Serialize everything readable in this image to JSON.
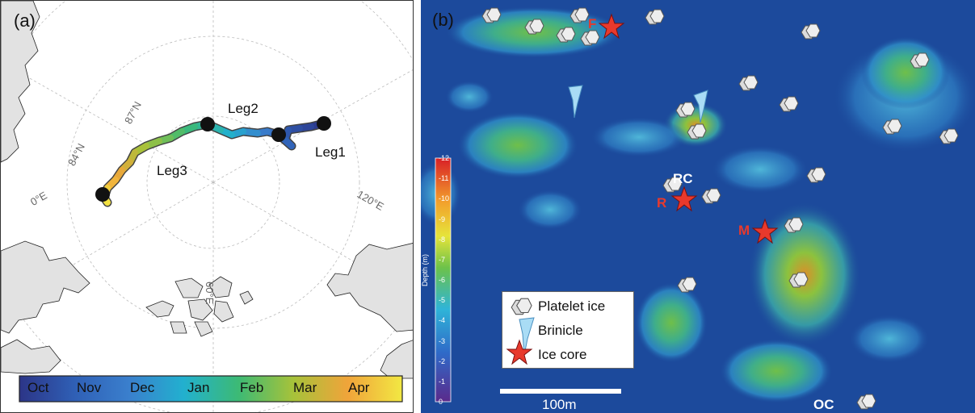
{
  "panel_a": {
    "tag": "(a)",
    "legs": [
      "Leg1",
      "Leg2",
      "Leg3"
    ],
    "lat_labels": [
      "87°N",
      "84°N"
    ],
    "lon_labels": [
      "0°E",
      "120°E",
      "60°E"
    ],
    "colorbar_months": [
      "Oct",
      "Nov",
      "Dec",
      "Jan",
      "Feb",
      "Mar",
      "Apr"
    ],
    "month_colors": [
      "#2c3587",
      "#2f5fb5",
      "#3a7fcd",
      "#22b0cf",
      "#3cba75",
      "#a6c23a",
      "#f0a43a",
      "#f2e843"
    ]
  },
  "panel_b": {
    "tag": "(b)",
    "sites": {
      "F": "F",
      "RC": "RC",
      "R": "R",
      "M": "M",
      "OC": "OC"
    },
    "depth_axis": {
      "label": "Depth (m)",
      "ticks": [
        "-12",
        "-11",
        "-10",
        "-9",
        "-8",
        "-7",
        "-6",
        "-5",
        "-4",
        "-3",
        "-2",
        "-1",
        "0"
      ]
    },
    "legend": {
      "platelet": "Platelet ice",
      "brinicle": "Brinicle",
      "ice_core": "Ice core"
    },
    "scalebar": "100m",
    "colors": {
      "star": "#e8392c",
      "site_red": "#e8392c",
      "water": "#1c4a9c",
      "brinicle": "#a9dcf5"
    }
  }
}
